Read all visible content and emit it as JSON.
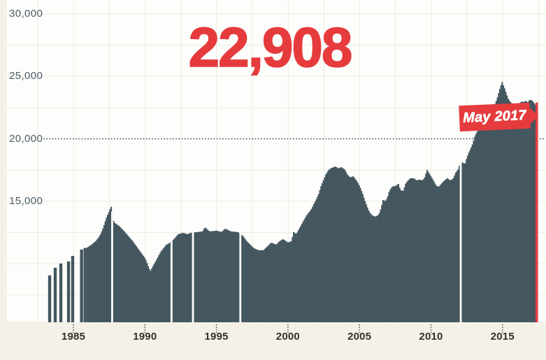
{
  "big_number": "22,908",
  "flag": {
    "label": "May 2017"
  },
  "colors": {
    "background": "#f4f1e8",
    "plot_background": "#fdfdfb",
    "bar": "#44565f",
    "accent_red": "#e63b3d",
    "grid": "#ecebe2",
    "reference_line": "#4f616b",
    "tick": "#4b4b4b",
    "y_axis_text": "#4a5b66",
    "x_axis_text": "#33312c"
  },
  "y_axis": {
    "labels": [
      {
        "text": "30,000",
        "value": 30000
      },
      {
        "text": "25,000",
        "value": 25000
      },
      {
        "text": "20,000",
        "value": 20000
      },
      {
        "text": "15,000",
        "value": 15000
      }
    ]
  },
  "x_axis": {
    "labels": [
      {
        "text": "1985",
        "value": 1985
      },
      {
        "text": "1990",
        "value": 1990
      },
      {
        "text": "1995",
        "value": 1995
      },
      {
        "text": "2000",
        "value": 2000
      },
      {
        "text": "2005",
        "value": 2005
      },
      {
        "text": "2010",
        "value": 2010
      },
      {
        "text": "2015",
        "value": 2015
      }
    ]
  },
  "chart_data": {
    "type": "bar",
    "title": "22,908",
    "annotation": "May 2017",
    "grid": "light",
    "x_start": 1983.3,
    "x_end": 2017.37,
    "y_gridline_step": 2500,
    "reference_value": 20000,
    "ylim": [
      5300,
      30000
    ],
    "bar_interval": "monthly",
    "highlight_last": {
      "x": 2017.37,
      "value": 22908,
      "label": "May 2017",
      "color": "#e63b3d"
    },
    "sparse_early_bars": [
      [
        1983.34,
        9060
      ],
      [
        1983.73,
        9670
      ],
      [
        1984.12,
        10010
      ],
      [
        1984.66,
        10180
      ],
      [
        1984.95,
        10620
      ],
      [
        1985.57,
        11130
      ],
      [
        1985.82,
        11260
      ]
    ],
    "white_gap_years": [
      1987.71,
      1991.86,
      1993.36,
      1996.67,
      2012.08
    ],
    "envelope_points": [
      [
        1985.98,
        11300
      ],
      [
        1986.27,
        11520
      ],
      [
        1986.56,
        11800
      ],
      [
        1986.86,
        12250
      ],
      [
        1987.1,
        12920
      ],
      [
        1987.3,
        13650
      ],
      [
        1987.49,
        14160
      ],
      [
        1987.59,
        14440
      ],
      [
        1987.64,
        14600
      ],
      [
        1987.83,
        13310
      ],
      [
        1988.18,
        13030
      ],
      [
        1988.52,
        12640
      ],
      [
        1988.81,
        12250
      ],
      [
        1989.15,
        11800
      ],
      [
        1989.5,
        11240
      ],
      [
        1989.79,
        10790
      ],
      [
        1990.03,
        10400
      ],
      [
        1990.23,
        9800
      ],
      [
        1990.38,
        9390
      ],
      [
        1990.52,
        9700
      ],
      [
        1990.72,
        10120
      ],
      [
        1991.11,
        10960
      ],
      [
        1991.5,
        11520
      ],
      [
        1991.7,
        11630
      ],
      [
        1991.99,
        11910
      ],
      [
        1992.33,
        12360
      ],
      [
        1992.67,
        12470
      ],
      [
        1992.97,
        12360
      ],
      [
        1993.21,
        12470
      ],
      [
        1993.65,
        12530
      ],
      [
        1994.04,
        12580
      ],
      [
        1994.19,
        12920
      ],
      [
        1994.53,
        12580
      ],
      [
        1995.02,
        12640
      ],
      [
        1995.36,
        12530
      ],
      [
        1995.61,
        12810
      ],
      [
        1996.0,
        12580
      ],
      [
        1996.49,
        12530
      ],
      [
        1996.88,
        12190
      ],
      [
        1997.12,
        11800
      ],
      [
        1997.37,
        11520
      ],
      [
        1997.61,
        11240
      ],
      [
        1997.95,
        11070
      ],
      [
        1998.29,
        11070
      ],
      [
        1998.59,
        11410
      ],
      [
        1998.83,
        11690
      ],
      [
        1999.17,
        11520
      ],
      [
        1999.42,
        11800
      ],
      [
        1999.66,
        11970
      ],
      [
        2000.0,
        11690
      ],
      [
        2000.25,
        11800
      ],
      [
        2000.39,
        12530
      ],
      [
        2000.59,
        12360
      ],
      [
        2000.79,
        12810
      ],
      [
        2000.93,
        13090
      ],
      [
        2001.08,
        13420
      ],
      [
        2001.28,
        13820
      ],
      [
        2001.42,
        14040
      ],
      [
        2001.62,
        14320
      ],
      [
        2001.81,
        14770
      ],
      [
        2001.96,
        15100
      ],
      [
        2002.16,
        15610
      ],
      [
        2002.3,
        16170
      ],
      [
        2002.5,
        16730
      ],
      [
        2002.64,
        17120
      ],
      [
        2002.84,
        17510
      ],
      [
        2003.08,
        17680
      ],
      [
        2003.33,
        17790
      ],
      [
        2003.52,
        17620
      ],
      [
        2003.72,
        17730
      ],
      [
        2003.96,
        17560
      ],
      [
        2004.16,
        17120
      ],
      [
        2004.36,
        16900
      ],
      [
        2004.55,
        17010
      ],
      [
        2004.75,
        16730
      ],
      [
        2004.94,
        16390
      ],
      [
        2005.09,
        16000
      ],
      [
        2005.24,
        15550
      ],
      [
        2005.38,
        15050
      ],
      [
        2005.53,
        14600
      ],
      [
        2005.68,
        14160
      ],
      [
        2005.87,
        13880
      ],
      [
        2006.12,
        13760
      ],
      [
        2006.36,
        13930
      ],
      [
        2006.51,
        14440
      ],
      [
        2006.66,
        15160
      ],
      [
        2006.8,
        14990
      ],
      [
        2006.95,
        15270
      ],
      [
        2007.09,
        15830
      ],
      [
        2007.29,
        16170
      ],
      [
        2007.53,
        16230
      ],
      [
        2007.73,
        16390
      ],
      [
        2007.87,
        15890
      ],
      [
        2008.07,
        15830
      ],
      [
        2008.22,
        16390
      ],
      [
        2008.36,
        16620
      ],
      [
        2008.56,
        16840
      ],
      [
        2008.8,
        16840
      ],
      [
        2009.0,
        16670
      ],
      [
        2009.19,
        16730
      ],
      [
        2009.39,
        16670
      ],
      [
        2009.54,
        16840
      ],
      [
        2009.73,
        17510
      ],
      [
        2009.88,
        17230
      ],
      [
        2010.02,
        16950
      ],
      [
        2010.17,
        16670
      ],
      [
        2010.37,
        16230
      ],
      [
        2010.56,
        16170
      ],
      [
        2010.76,
        16450
      ],
      [
        2010.95,
        16670
      ],
      [
        2011.15,
        16840
      ],
      [
        2011.34,
        16670
      ],
      [
        2011.54,
        16780
      ],
      [
        2011.73,
        17290
      ],
      [
        2011.88,
        17510
      ],
      [
        2011.98,
        17840
      ],
      [
        2012.22,
        18120
      ],
      [
        2012.37,
        17950
      ],
      [
        2012.47,
        18350
      ],
      [
        2012.61,
        18800
      ],
      [
        2012.76,
        19190
      ],
      [
        2012.91,
        19580
      ],
      [
        2013.05,
        20140
      ],
      [
        2013.2,
        20530
      ],
      [
        2013.35,
        20810
      ],
      [
        2013.49,
        21040
      ],
      [
        2013.64,
        21200
      ],
      [
        2013.79,
        21320
      ],
      [
        2013.93,
        21490
      ],
      [
        2014.08,
        21880
      ],
      [
        2014.23,
        22210
      ],
      [
        2014.37,
        22550
      ],
      [
        2014.52,
        22890
      ],
      [
        2014.67,
        23390
      ],
      [
        2014.77,
        23840
      ],
      [
        2014.86,
        24170
      ],
      [
        2014.96,
        24510
      ],
      [
        2015.01,
        24620
      ],
      [
        2015.06,
        24290
      ],
      [
        2015.16,
        24010
      ],
      [
        2015.26,
        23670
      ],
      [
        2015.35,
        23330
      ],
      [
        2015.45,
        23110
      ],
      [
        2015.6,
        22890
      ],
      [
        2015.75,
        22780
      ],
      [
        2015.89,
        22720
      ],
      [
        2016.04,
        22780
      ],
      [
        2016.19,
        22830
      ],
      [
        2016.33,
        23000
      ],
      [
        2016.48,
        22940
      ],
      [
        2016.63,
        23050
      ],
      [
        2016.77,
        22890
      ],
      [
        2016.87,
        23110
      ],
      [
        2017.02,
        23110
      ],
      [
        2017.17,
        22940
      ],
      [
        2017.31,
        22700
      ],
      [
        2017.37,
        22908
      ]
    ]
  }
}
